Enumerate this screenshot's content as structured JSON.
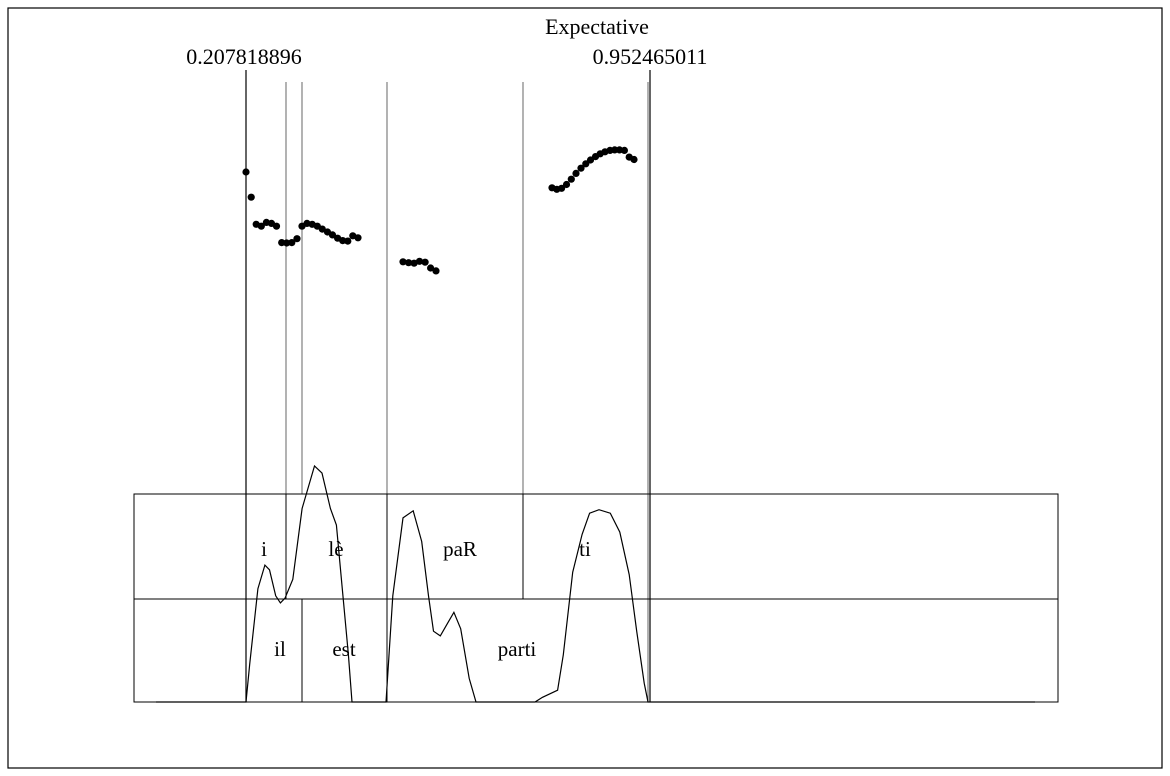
{
  "chart_data": {
    "type": "scatter",
    "title": "Expectative",
    "time_markers": {
      "start_label": "0.207818896",
      "end_label": "0.952465011",
      "start_t": 0.207818896,
      "end_t": 0.952465011
    },
    "segment_boundaries_t": [
      0.2078,
      0.2314,
      0.2403,
      0.2863,
      0.366,
      0.4434,
      0.9525
    ],
    "pitch_points": [
      {
        "t": 0.2078,
        "v": 0.95
      },
      {
        "t": 0.2112,
        "v": 0.845
      },
      {
        "t": 0.2145,
        "v": 0.732
      },
      {
        "t": 0.2178,
        "v": 0.724
      },
      {
        "t": 0.2212,
        "v": 0.74
      },
      {
        "t": 0.2245,
        "v": 0.736
      },
      {
        "t": 0.2278,
        "v": 0.724
      },
      {
        "t": 0.2312,
        "v": 0.656
      },
      {
        "t": 0.2345,
        "v": 0.654
      },
      {
        "t": 0.2378,
        "v": 0.656
      },
      {
        "t": 0.2412,
        "v": 0.672
      },
      {
        "t": 0.2445,
        "v": 0.724
      },
      {
        "t": 0.2478,
        "v": 0.736
      },
      {
        "t": 0.2512,
        "v": 0.732
      },
      {
        "t": 0.2545,
        "v": 0.724
      },
      {
        "t": 0.2578,
        "v": 0.712
      },
      {
        "t": 0.2612,
        "v": 0.7
      },
      {
        "t": 0.2645,
        "v": 0.688
      },
      {
        "t": 0.2678,
        "v": 0.674
      },
      {
        "t": 0.2712,
        "v": 0.664
      },
      {
        "t": 0.2745,
        "v": 0.662
      },
      {
        "t": 0.2778,
        "v": 0.684
      },
      {
        "t": 0.2812,
        "v": 0.676
      },
      {
        "t": 0.2954,
        "v": 0.576
      },
      {
        "t": 0.2988,
        "v": 0.572
      },
      {
        "t": 0.3021,
        "v": 0.57
      },
      {
        "t": 0.3054,
        "v": 0.578
      },
      {
        "t": 0.3088,
        "v": 0.574
      },
      {
        "t": 0.3121,
        "v": 0.55
      },
      {
        "t": 0.3154,
        "v": 0.538
      },
      {
        "t": 0.3827,
        "v": 0.884
      },
      {
        "t": 0.386,
        "v": 0.878
      },
      {
        "t": 0.3893,
        "v": 0.882
      },
      {
        "t": 0.3927,
        "v": 0.898
      },
      {
        "t": 0.396,
        "v": 0.92
      },
      {
        "t": 0.3993,
        "v": 0.944
      },
      {
        "t": 0.4027,
        "v": 0.966
      },
      {
        "t": 0.406,
        "v": 0.984
      },
      {
        "t": 0.4093,
        "v": 1.0
      },
      {
        "t": 0.4127,
        "v": 1.014
      },
      {
        "t": 0.416,
        "v": 1.026
      },
      {
        "t": 0.4193,
        "v": 1.034
      },
      {
        "t": 0.4227,
        "v": 1.04
      },
      {
        "t": 0.426,
        "v": 1.042
      },
      {
        "t": 0.4293,
        "v": 1.042
      },
      {
        "t": 0.4327,
        "v": 1.04
      },
      {
        "t": 0.436,
        "v": 1.012
      },
      {
        "t": 0.4393,
        "v": 1.002
      }
    ],
    "envelope": [
      {
        "t": 0.17,
        "v": 0.0
      },
      {
        "t": 0.2078,
        "v": 0.0
      },
      {
        "t": 0.2102,
        "v": 0.16
      },
      {
        "t": 0.2155,
        "v": 0.48
      },
      {
        "t": 0.22,
        "v": 0.58
      },
      {
        "t": 0.223,
        "v": 0.56
      },
      {
        "t": 0.227,
        "v": 0.45
      },
      {
        "t": 0.23,
        "v": 0.42
      },
      {
        "t": 0.233,
        "v": 0.44
      },
      {
        "t": 0.238,
        "v": 0.52
      },
      {
        "t": 0.244,
        "v": 0.82
      },
      {
        "t": 0.252,
        "v": 1.0
      },
      {
        "t": 0.258,
        "v": 0.97
      },
      {
        "t": 0.265,
        "v": 0.82
      },
      {
        "t": 0.27,
        "v": 0.75
      },
      {
        "t": 0.276,
        "v": 0.42
      },
      {
        "t": 0.28,
        "v": 0.2
      },
      {
        "t": 0.283,
        "v": 0.0
      },
      {
        "t": 0.288,
        "v": 0.0
      },
      {
        "t": 0.292,
        "v": 0.45
      },
      {
        "t": 0.298,
        "v": 0.78
      },
      {
        "t": 0.304,
        "v": 0.81
      },
      {
        "t": 0.309,
        "v": 0.68
      },
      {
        "t": 0.313,
        "v": 0.45
      },
      {
        "t": 0.316,
        "v": 0.3
      },
      {
        "t": 0.32,
        "v": 0.28
      },
      {
        "t": 0.324,
        "v": 0.33
      },
      {
        "t": 0.328,
        "v": 0.38
      },
      {
        "t": 0.332,
        "v": 0.31
      },
      {
        "t": 0.337,
        "v": 0.1
      },
      {
        "t": 0.341,
        "v": 0.0
      },
      {
        "t": 0.358,
        "v": 0.0
      },
      {
        "t": 0.362,
        "v": 0.02
      },
      {
        "t": 0.37,
        "v": 0.05
      },
      {
        "t": 0.373,
        "v": 0.2
      },
      {
        "t": 0.378,
        "v": 0.55
      },
      {
        "t": 0.383,
        "v": 0.71
      },
      {
        "t": 0.387,
        "v": 0.8
      },
      {
        "t": 0.392,
        "v": 0.815
      },
      {
        "t": 0.398,
        "v": 0.8
      },
      {
        "t": 0.403,
        "v": 0.72
      },
      {
        "t": 0.408,
        "v": 0.54
      },
      {
        "t": 0.412,
        "v": 0.3
      },
      {
        "t": 0.416,
        "v": 0.08
      },
      {
        "t": 0.418,
        "v": 0.0
      },
      {
        "t": 0.42,
        "v": 0.0
      },
      {
        "t": 0.43,
        "v": 0.0
      },
      {
        "t": 0.44,
        "v": 0.0
      }
    ],
    "tiers": [
      {
        "name": "",
        "segments": [
          {
            "label": "i",
            "start_t": 0.2078,
            "end_t": 0.2314
          },
          {
            "label": "lè",
            "start_t": 0.2314,
            "end_t": 0.2863
          },
          {
            "label": "paR",
            "start_t": 0.2863,
            "end_t": 0.366
          },
          {
            "label": "ti",
            "start_t": 0.366,
            "end_t": 0.4434
          }
        ]
      },
      {
        "name": "",
        "segments": [
          {
            "label": "il",
            "start_t": 0.2078,
            "end_t": 0.2403
          },
          {
            "label": "est",
            "start_t": 0.2403,
            "end_t": 0.2863
          },
          {
            "label": "parti",
            "start_t": 0.2863,
            "end_t": 0.4434
          }
        ]
      }
    ],
    "grid": false,
    "legend": "none"
  }
}
